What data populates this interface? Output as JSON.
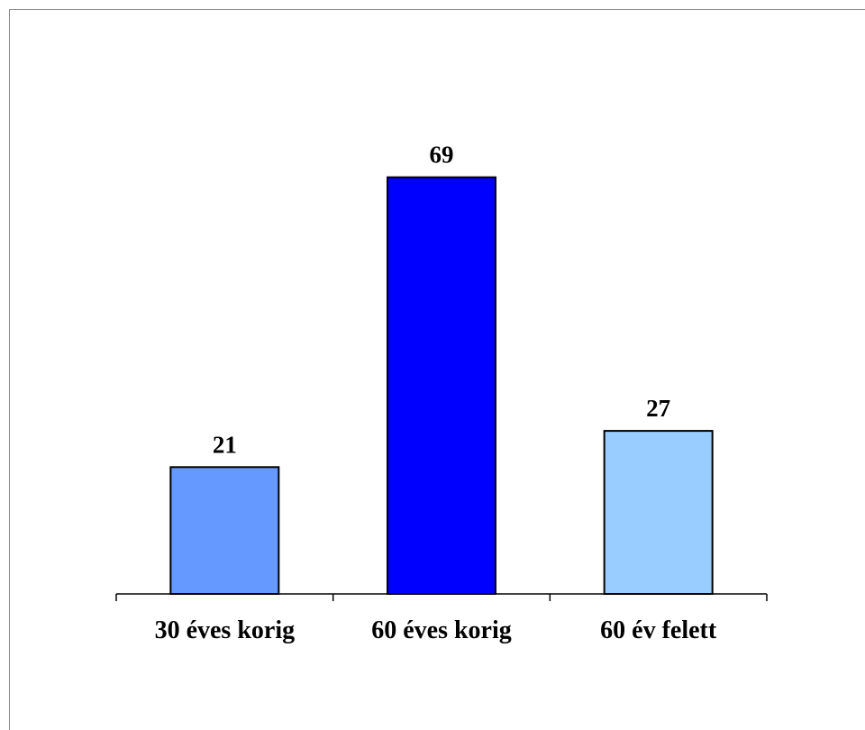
{
  "chart_data": {
    "type": "bar",
    "categories": [
      "30 éves korig",
      "60 éves korig",
      "60 év felett"
    ],
    "values": [
      21,
      69,
      27
    ],
    "colors": [
      "#6699ff",
      "#0000ff",
      "#99ccff"
    ],
    "title": "",
    "xlabel": "",
    "ylabel": "",
    "ylim": [
      0,
      80
    ],
    "grid": false,
    "legend": "none",
    "data_labels": true
  }
}
